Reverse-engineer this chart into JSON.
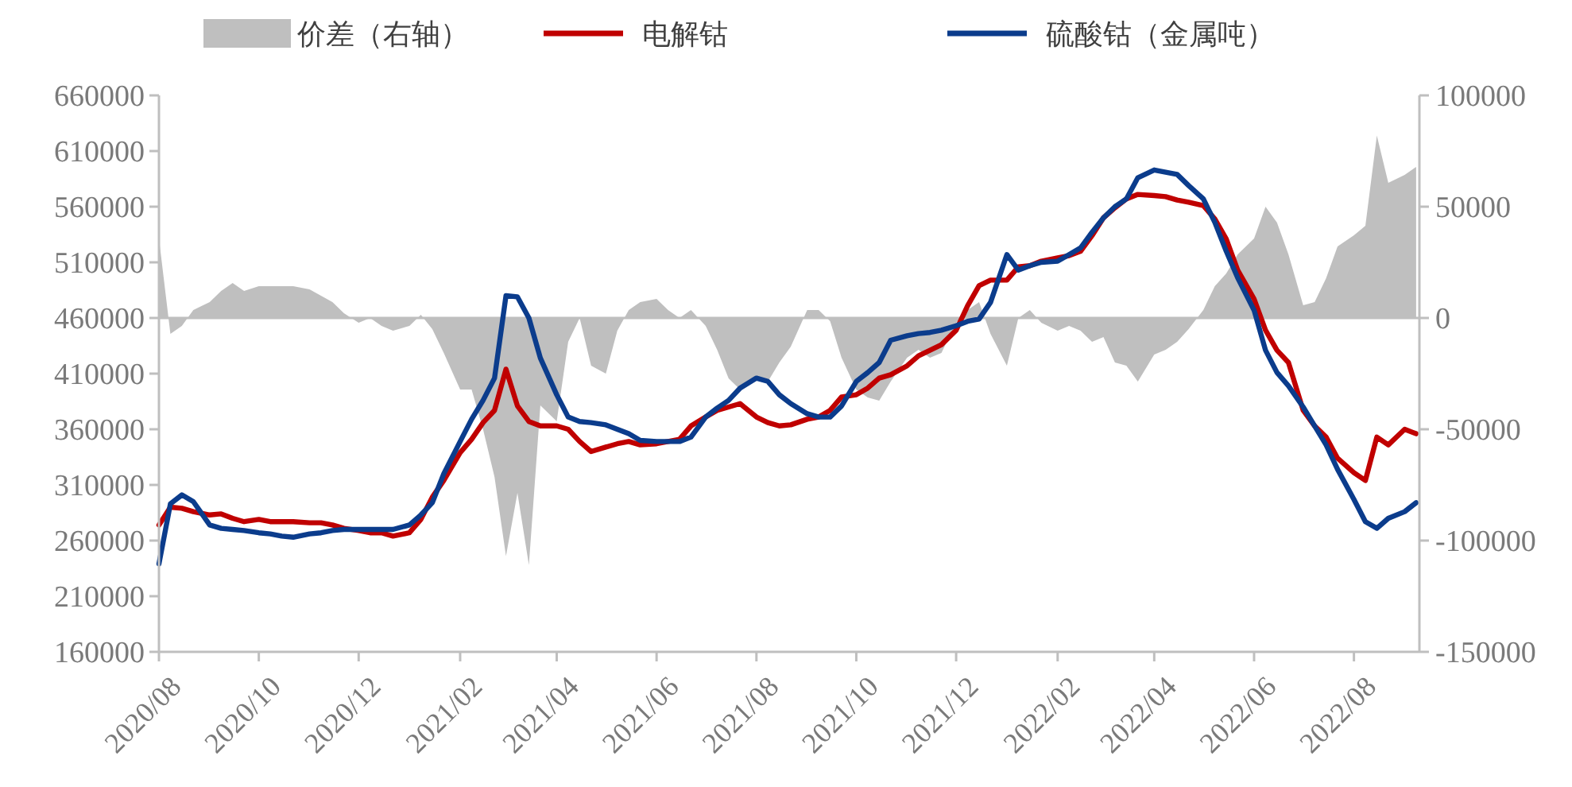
{
  "chart_data": {
    "type": "line",
    "legend": "top",
    "grid": false,
    "x": [
      "2020-08-01",
      "2020-08-08",
      "2020-08-15",
      "2020-08-22",
      "2020-09-01",
      "2020-09-08",
      "2020-09-15",
      "2020-09-22",
      "2020-10-01",
      "2020-10-08",
      "2020-10-15",
      "2020-10-22",
      "2020-11-01",
      "2020-11-08",
      "2020-11-15",
      "2020-11-22",
      "2020-12-01",
      "2020-12-08",
      "2020-12-15",
      "2020-12-22",
      "2021-01-01",
      "2021-01-08",
      "2021-01-15",
      "2021-01-22",
      "2021-02-01",
      "2021-02-08",
      "2021-02-15",
      "2021-02-22",
      "2021-03-01",
      "2021-03-08",
      "2021-03-15",
      "2021-03-22",
      "2021-04-01",
      "2021-04-08",
      "2021-04-15",
      "2021-04-22",
      "2021-05-01",
      "2021-05-08",
      "2021-05-15",
      "2021-05-22",
      "2021-06-01",
      "2021-06-08",
      "2021-06-15",
      "2021-06-22",
      "2021-07-01",
      "2021-07-08",
      "2021-07-15",
      "2021-07-22",
      "2021-08-01",
      "2021-08-08",
      "2021-08-15",
      "2021-08-22",
      "2021-09-01",
      "2021-09-08",
      "2021-09-15",
      "2021-09-22",
      "2021-10-01",
      "2021-10-08",
      "2021-10-15",
      "2021-10-22",
      "2021-11-01",
      "2021-11-08",
      "2021-11-15",
      "2021-11-22",
      "2021-12-01",
      "2021-12-08",
      "2021-12-15",
      "2021-12-22",
      "2022-01-01",
      "2022-01-08",
      "2022-01-15",
      "2022-01-22",
      "2022-02-01",
      "2022-02-08",
      "2022-02-15",
      "2022-02-22",
      "2022-03-01",
      "2022-03-08",
      "2022-03-15",
      "2022-03-22",
      "2022-04-01",
      "2022-04-08",
      "2022-04-15",
      "2022-04-22",
      "2022-05-01",
      "2022-05-08",
      "2022-05-15",
      "2022-05-22",
      "2022-06-01",
      "2022-06-08",
      "2022-06-15",
      "2022-06-22",
      "2022-07-01",
      "2022-07-08",
      "2022-07-15",
      "2022-07-22",
      "2022-08-01",
      "2022-08-08",
      "2022-08-15",
      "2022-08-22",
      "2022-09-01",
      "2022-09-08"
    ],
    "series": [
      {
        "name": "价差（右轴）",
        "type": "area",
        "axis": "y2",
        "color": "#bfbfbf",
        "values": [
          35700,
          -7100,
          -3600,
          3600,
          7100,
          12100,
          15700,
          12100,
          14300,
          14300,
          14300,
          14300,
          12900,
          10000,
          7100,
          2100,
          -2100,
          0,
          -3600,
          -5700,
          -3600,
          1400,
          -5000,
          -15700,
          -32100,
          -32100,
          -50000,
          -71400,
          -107000,
          -78600,
          -111000,
          -39300,
          -46400,
          -10700,
          0,
          -21400,
          -25000,
          -5700,
          3600,
          7100,
          8600,
          3600,
          0,
          3600,
          -3600,
          -14300,
          -27100,
          -32100,
          -27100,
          -28600,
          -20000,
          -12900,
          3600,
          3600,
          -1400,
          -17900,
          -32100,
          -35700,
          -37100,
          -28600,
          -17900,
          -14300,
          -17900,
          -15700,
          -2100,
          3600,
          7100,
          -7100,
          -21400,
          0,
          3600,
          -2100,
          -5700,
          -3600,
          -5700,
          -10700,
          -8600,
          -20000,
          -21400,
          -28600,
          -16400,
          -14300,
          -10700,
          -5000,
          3600,
          14300,
          20000,
          28600,
          35700,
          50000,
          42900,
          28600,
          5700,
          7100,
          17900,
          32100,
          37100,
          41400,
          82000,
          60700,
          64300,
          67900
        ]
      },
      {
        "name": "电解钴",
        "color": "#c00000",
        "values": [
          274000,
          290000,
          289000,
          286000,
          283000,
          284000,
          280000,
          277000,
          279000,
          277000,
          277000,
          277000,
          276000,
          276000,
          274000,
          271000,
          269000,
          267000,
          267000,
          264000,
          267000,
          279000,
          299000,
          314000,
          339000,
          351000,
          366000,
          377000,
          414000,
          381000,
          367000,
          363000,
          363000,
          360000,
          349000,
          340000,
          344000,
          347000,
          349000,
          346000,
          347000,
          349000,
          351000,
          363000,
          371000,
          377000,
          380000,
          383000,
          371000,
          366000,
          363000,
          364000,
          369000,
          371000,
          377000,
          389000,
          391000,
          397000,
          406000,
          409000,
          417000,
          426000,
          431000,
          436000,
          449000,
          471000,
          489000,
          494000,
          494000,
          506000,
          507000,
          511000,
          514000,
          516000,
          520000,
          534000,
          550000,
          559000,
          567000,
          571000,
          570000,
          569000,
          566000,
          564000,
          561000,
          549000,
          531000,
          503000,
          477000,
          449000,
          431000,
          420000,
          377000,
          363000,
          353000,
          334000,
          321000,
          314000,
          353000,
          346000,
          360000,
          356000
        ]
      },
      {
        "name": "硫酸钴（金属吨）",
        "color": "#0b3c8c",
        "values": [
          239000,
          293000,
          301000,
          295000,
          274000,
          271000,
          270000,
          269000,
          267000,
          266000,
          264000,
          263000,
          266000,
          267000,
          269000,
          270000,
          270000,
          270000,
          270000,
          270000,
          274000,
          283000,
          294000,
          320000,
          349000,
          369000,
          386000,
          406000,
          480000,
          479000,
          460000,
          424000,
          391000,
          371000,
          367000,
          366000,
          364000,
          360000,
          356000,
          350000,
          349000,
          349000,
          349000,
          353000,
          371000,
          379000,
          386000,
          397000,
          406000,
          403000,
          391000,
          383000,
          374000,
          371000,
          371000,
          381000,
          403000,
          411000,
          420000,
          440000,
          444000,
          446000,
          447000,
          449000,
          453000,
          457000,
          459000,
          474000,
          517000,
          503000,
          507000,
          510000,
          511000,
          517000,
          523000,
          537000,
          550000,
          560000,
          567000,
          586000,
          593000,
          591000,
          589000,
          579000,
          567000,
          546000,
          520000,
          496000,
          467000,
          431000,
          411000,
          399000,
          380000,
          363000,
          346000,
          324000,
          297000,
          277000,
          271000,
          280000,
          286000,
          294000
        ]
      }
    ],
    "xlim": [
      "2020-08-01",
      "2022-09-10"
    ],
    "xticks": [
      {
        "value": "2020-08-01",
        "label": "2020/08"
      },
      {
        "value": "2020-10-01",
        "label": "2020/10"
      },
      {
        "value": "2020-12-01",
        "label": "2020/12"
      },
      {
        "value": "2021-02-01",
        "label": "2021/02"
      },
      {
        "value": "2021-04-01",
        "label": "2021/04"
      },
      {
        "value": "2021-06-01",
        "label": "2021/06"
      },
      {
        "value": "2021-08-01",
        "label": "2021/08"
      },
      {
        "value": "2021-10-01",
        "label": "2021/10"
      },
      {
        "value": "2021-12-01",
        "label": "2021/12"
      },
      {
        "value": "2022-02-01",
        "label": "2022/02"
      },
      {
        "value": "2022-04-01",
        "label": "2022/04"
      },
      {
        "value": "2022-06-01",
        "label": "2022/06"
      },
      {
        "value": "2022-08-01",
        "label": "2022/08"
      }
    ],
    "ylim": [
      160000,
      660000
    ],
    "yticks": [
      160000,
      210000,
      260000,
      310000,
      360000,
      410000,
      460000,
      510000,
      560000,
      610000,
      660000
    ],
    "ref_lines": [
      {
        "axis": "y2",
        "value": 0,
        "color": "#bfbfbf"
      }
    ],
    "y2lim": [
      -150000,
      100000
    ],
    "y2ticks": [
      -150000,
      -100000,
      -50000,
      0,
      50000,
      100000
    ]
  }
}
